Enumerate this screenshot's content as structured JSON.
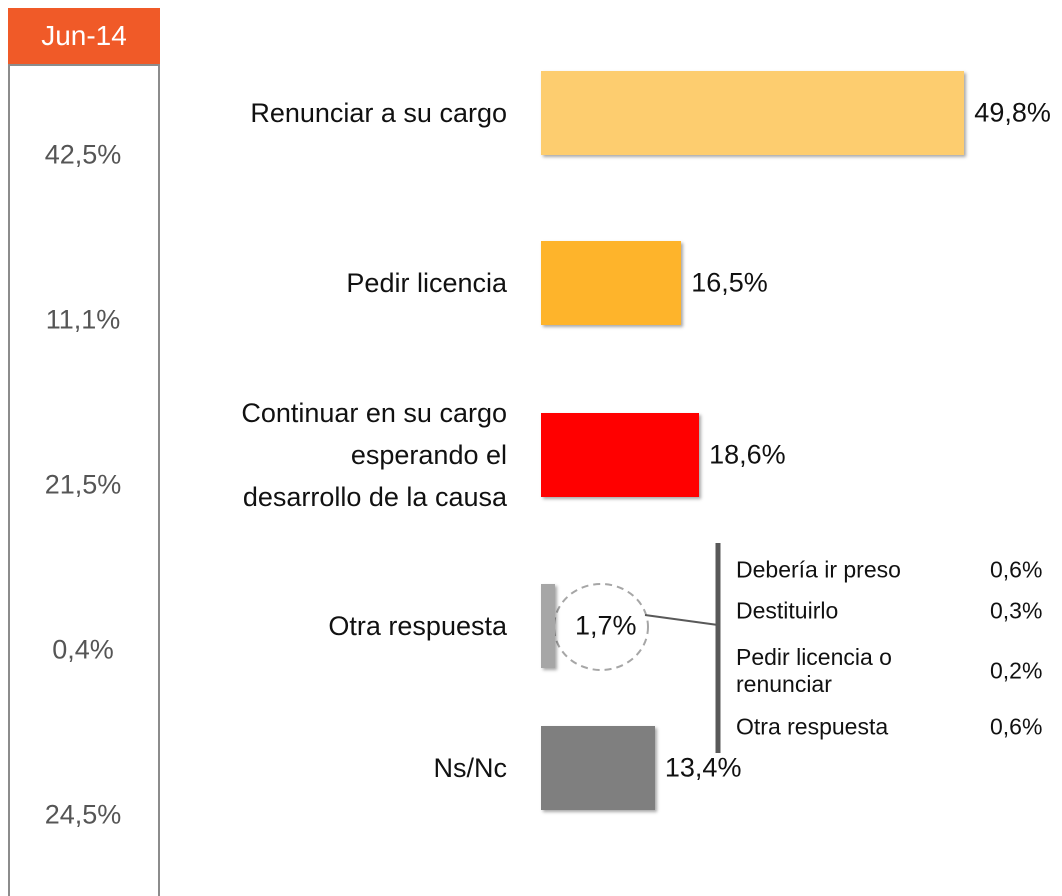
{
  "chart_data": {
    "type": "bar",
    "orientation": "horizontal",
    "categories": [
      "Renunciar a su cargo",
      "Pedir licencia",
      "Continuar en su cargo\nesperando el\ndesarrollo de la causa",
      "Otra respuesta",
      "Ns/Nc"
    ],
    "values": [
      49.8,
      16.5,
      18.6,
      1.7,
      13.4
    ],
    "value_labels": [
      "49,8%",
      "16,5%",
      "18,6%",
      "1,7%",
      "13,4%"
    ],
    "colors": [
      "#fdcd6f",
      "#feb42b",
      "#ff0000",
      "#a6a6a6",
      "#7f7f7f"
    ],
    "comparison": {
      "title": "Jun-14",
      "values": [
        42.5,
        11.1,
        21.5,
        0.4,
        24.5
      ],
      "value_labels": [
        "42,5%",
        "11,1%",
        "21,5%",
        "0,4%",
        "24,5%"
      ]
    },
    "breakdown": {
      "names": [
        "Debería ir preso",
        "Destituirlo",
        "Pedir licencia o\nrenunciar",
        "Otra respuesta"
      ],
      "values": [
        0.6,
        0.3,
        0.2,
        0.6
      ],
      "value_labels": [
        "0,6%",
        "0,3%",
        "0,2%",
        "0,6%"
      ]
    }
  }
}
